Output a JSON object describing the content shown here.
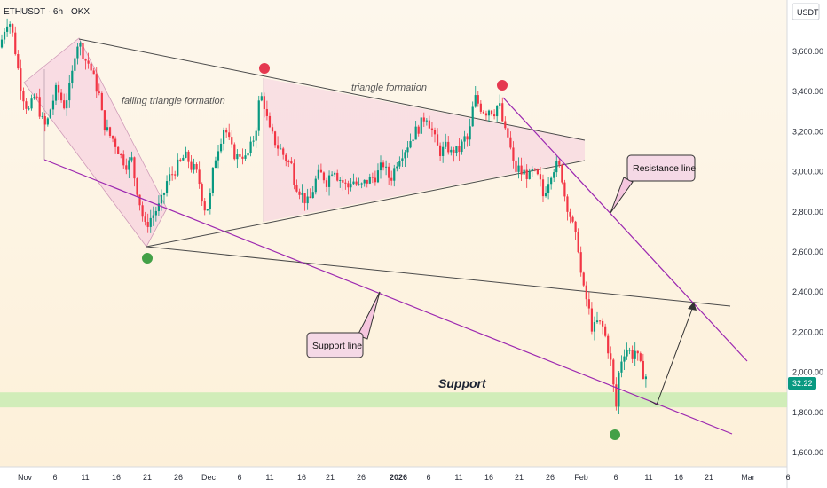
{
  "header": {
    "symbol": "ETHUSDT · 6h · OKX"
  },
  "price_axis": {
    "currency": "USDT",
    "current_badge": "32:22"
  },
  "annotations": {
    "falling_triangle": "falling triangle formation",
    "triangle": "triangle formation",
    "support_zone": "Support",
    "support_line": "Support line",
    "resistance_line": "Resistance line"
  },
  "colors": {
    "up": "#089981",
    "down": "#f23645",
    "purple_line": "#9c27b0",
    "pattern_fill": "#f5c6de",
    "support_band": "#c9ecb3",
    "green_marker": "#43a047",
    "red_marker": "#e53950"
  },
  "chart_data": {
    "type": "candlestick",
    "y_ticks": [
      "1,600.00",
      "1,800.00",
      "2,000.00",
      "2,200.00",
      "2,400.00",
      "2,600.00",
      "2,800.00",
      "3,000.00",
      "3,200.00",
      "3,400.00",
      "3,600.00"
    ],
    "x_ticks": [
      "Nov",
      "6",
      "11",
      "16",
      "21",
      "26",
      "Dec",
      "6",
      "11",
      "16",
      "21",
      "26",
      "2026",
      "6",
      "11",
      "16",
      "21",
      "26",
      "Feb",
      "6",
      "11",
      "16",
      "21",
      "Mar",
      "6"
    ],
    "ylim": [
      1540,
      3800
    ],
    "support_zone": [
      1825,
      1900
    ],
    "price_path": [
      [
        0,
        3620
      ],
      [
        4,
        3700
      ],
      [
        8,
        3750
      ],
      [
        12,
        3740
      ],
      [
        16,
        3640
      ],
      [
        20,
        3520
      ],
      [
        24,
        3410
      ],
      [
        28,
        3350
      ],
      [
        32,
        3300
      ],
      [
        36,
        3340
      ],
      [
        40,
        3390
      ],
      [
        44,
        3310
      ],
      [
        48,
        3250
      ],
      [
        52,
        3220
      ],
      [
        56,
        3300
      ],
      [
        60,
        3360
      ],
      [
        64,
        3420
      ],
      [
        68,
        3370
      ],
      [
        72,
        3330
      ],
      [
        76,
        3380
      ],
      [
        80,
        3440
      ],
      [
        84,
        3590
      ],
      [
        88,
        3650
      ],
      [
        92,
        3610
      ],
      [
        96,
        3560
      ],
      [
        100,
        3540
      ],
      [
        104,
        3490
      ],
      [
        108,
        3430
      ],
      [
        112,
        3380
      ],
      [
        116,
        3250
      ],
      [
        120,
        3210
      ],
      [
        124,
        3180
      ],
      [
        128,
        3160
      ],
      [
        132,
        3120
      ],
      [
        136,
        3080
      ],
      [
        140,
        3050
      ],
      [
        144,
        3030
      ],
      [
        148,
        3070
      ],
      [
        152,
        2960
      ],
      [
        156,
        2880
      ],
      [
        160,
        2790
      ],
      [
        164,
        2720
      ],
      [
        168,
        2760
      ],
      [
        172,
        2780
      ],
      [
        176,
        2810
      ],
      [
        180,
        2830
      ],
      [
        184,
        2880
      ],
      [
        188,
        2950
      ],
      [
        192,
        2980
      ],
      [
        196,
        3000
      ],
      [
        200,
        3030
      ],
      [
        204,
        3050
      ],
      [
        208,
        3080
      ],
      [
        212,
        3060
      ],
      [
        216,
        3020
      ],
      [
        220,
        3010
      ],
      [
        224,
        2960
      ],
      [
        228,
        2870
      ],
      [
        232,
        2800
      ],
      [
        236,
        2850
      ],
      [
        240,
        3000
      ],
      [
        244,
        3100
      ],
      [
        248,
        3150
      ],
      [
        252,
        3220
      ],
      [
        256,
        3190
      ],
      [
        260,
        3120
      ],
      [
        264,
        3090
      ],
      [
        268,
        3070
      ],
      [
        272,
        3100
      ],
      [
        276,
        3060
      ],
      [
        280,
        3090
      ],
      [
        284,
        3140
      ],
      [
        288,
        3200
      ],
      [
        292,
        3350
      ],
      [
        296,
        3380
      ],
      [
        300,
        3280
      ],
      [
        304,
        3200
      ],
      [
        308,
        3170
      ],
      [
        312,
        3130
      ],
      [
        316,
        3110
      ],
      [
        320,
        3080
      ],
      [
        324,
        3050
      ],
      [
        328,
        3040
      ],
      [
        332,
        2950
      ],
      [
        336,
        2920
      ],
      [
        340,
        2890
      ],
      [
        344,
        2860
      ],
      [
        348,
        2840
      ],
      [
        352,
        2900
      ],
      [
        356,
        2960
      ],
      [
        360,
        2990
      ],
      [
        364,
        2980
      ],
      [
        368,
        2950
      ],
      [
        372,
        2990
      ],
      [
        376,
        3030
      ],
      [
        380,
        2980
      ],
      [
        384,
        2960
      ],
      [
        388,
        2940
      ],
      [
        392,
        2920
      ],
      [
        396,
        2960
      ],
      [
        400,
        2950
      ],
      [
        404,
        2920
      ],
      [
        408,
        2930
      ],
      [
        412,
        2950
      ],
      [
        416,
        2960
      ],
      [
        420,
        2970
      ],
      [
        424,
        2980
      ],
      [
        428,
        3010
      ],
      [
        432,
        3040
      ],
      [
        436,
        2990
      ],
      [
        440,
        2960
      ],
      [
        444,
        3010
      ],
      [
        448,
        3060
      ],
      [
        452,
        3090
      ],
      [
        456,
        3110
      ],
      [
        460,
        3140
      ],
      [
        464,
        3170
      ],
      [
        468,
        3200
      ],
      [
        472,
        3220
      ],
      [
        476,
        3250
      ],
      [
        480,
        3290
      ],
      [
        484,
        3240
      ],
      [
        488,
        3190
      ],
      [
        492,
        3130
      ],
      [
        496,
        3100
      ],
      [
        500,
        3110
      ],
      [
        504,
        3130
      ],
      [
        508,
        3090
      ],
      [
        512,
        3110
      ],
      [
        516,
        3100
      ],
      [
        520,
        3130
      ],
      [
        524,
        3170
      ],
      [
        528,
        3150
      ],
      [
        532,
        3300
      ],
      [
        536,
        3370
      ],
      [
        540,
        3330
      ],
      [
        544,
        3310
      ],
      [
        548,
        3300
      ],
      [
        552,
        3320
      ],
      [
        556,
        3290
      ],
      [
        560,
        3330
      ],
      [
        564,
        3320
      ],
      [
        568,
        3200
      ],
      [
        572,
        3180
      ],
      [
        576,
        3100
      ],
      [
        580,
        3000
      ],
      [
        584,
        3020
      ],
      [
        588,
        2990
      ],
      [
        592,
        3000
      ],
      [
        596,
        2970
      ],
      [
        600,
        3000
      ],
      [
        604,
        2980
      ],
      [
        608,
        2960
      ],
      [
        612,
        2880
      ],
      [
        616,
        2930
      ],
      [
        620,
        2990
      ],
      [
        624,
        3020
      ],
      [
        628,
        3030
      ],
      [
        632,
        3010
      ],
      [
        636,
        2890
      ],
      [
        640,
        2820
      ],
      [
        644,
        2760
      ],
      [
        648,
        2680
      ],
      [
        652,
        2620
      ],
      [
        656,
        2430
      ],
      [
        660,
        2380
      ],
      [
        664,
        2300
      ],
      [
        668,
        2200
      ],
      [
        672,
        2250
      ],
      [
        676,
        2240
      ],
      [
        680,
        2220
      ],
      [
        684,
        2140
      ],
      [
        688,
        2060
      ],
      [
        692,
        1900
      ],
      [
        694,
        1800
      ],
      [
        696,
        1960
      ],
      [
        700,
        2060
      ],
      [
        704,
        2110
      ],
      [
        708,
        2120
      ],
      [
        712,
        2080
      ],
      [
        716,
        2110
      ],
      [
        720,
        2050
      ],
      [
        724,
        2000
      ],
      [
        728,
        1980
      ]
    ]
  }
}
